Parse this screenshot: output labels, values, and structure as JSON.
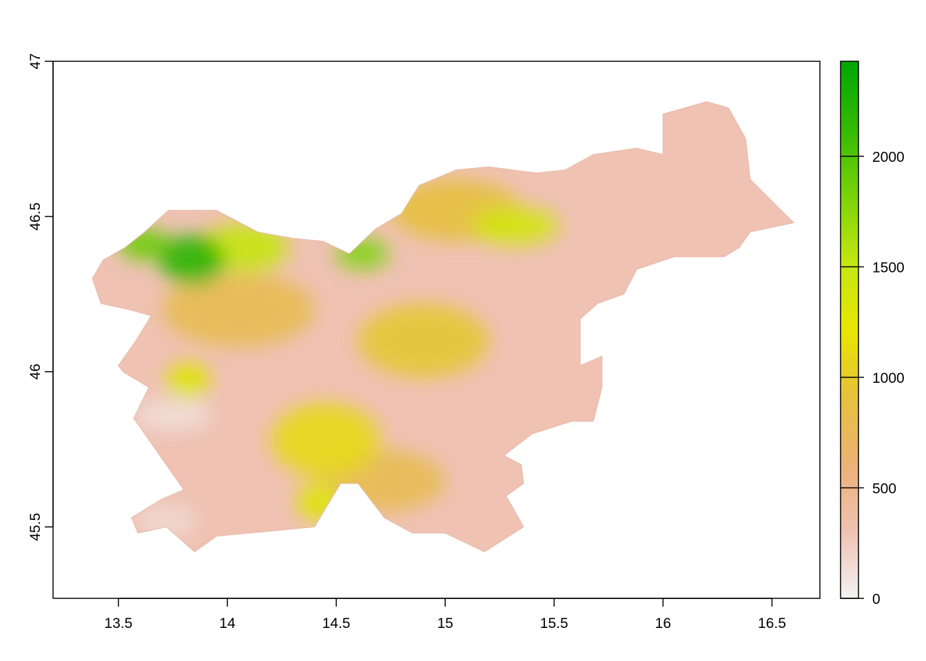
{
  "chart_data": {
    "type": "heatmap",
    "title": "",
    "xlabel": "",
    "ylabel": "",
    "xlim": [
      13.2,
      16.72
    ],
    "ylim": [
      45.27,
      47.0
    ],
    "x_ticks": [
      "13.5",
      "14",
      "14.5",
      "15",
      "15.5",
      "16",
      "16.5"
    ],
    "y_ticks": [
      "45.5",
      "46",
      "46.5",
      "47"
    ],
    "legend": {
      "placement": "right",
      "range": [
        0,
        2430
      ],
      "ticks": [
        "0",
        "500",
        "1000",
        "1500",
        "2000"
      ],
      "colors": [
        "#f2f2f2",
        "#efc2b3",
        "#ecb176",
        "#e6c13b",
        "#e8e600",
        "#c4e612",
        "#79d308",
        "#34ba03",
        "#00a600"
      ]
    },
    "region_outline_lonlat": [
      [
        13.38,
        46.3
      ],
      [
        13.43,
        46.36
      ],
      [
        13.53,
        46.4
      ],
      [
        13.62,
        46.45
      ],
      [
        13.73,
        46.52
      ],
      [
        13.95,
        46.52
      ],
      [
        14.14,
        46.45
      ],
      [
        14.3,
        46.43
      ],
      [
        14.44,
        46.42
      ],
      [
        14.56,
        46.38
      ],
      [
        14.68,
        46.46
      ],
      [
        14.8,
        46.51
      ],
      [
        14.88,
        46.6
      ],
      [
        15.05,
        46.65
      ],
      [
        15.2,
        46.66
      ],
      [
        15.42,
        46.64
      ],
      [
        15.55,
        46.65
      ],
      [
        15.68,
        46.7
      ],
      [
        15.88,
        46.72
      ],
      [
        16.0,
        46.7
      ],
      [
        16.0,
        46.83
      ],
      [
        16.2,
        46.87
      ],
      [
        16.3,
        46.85
      ],
      [
        16.38,
        46.75
      ],
      [
        16.4,
        46.62
      ],
      [
        16.6,
        46.48
      ],
      [
        16.4,
        46.45
      ],
      [
        16.35,
        46.4
      ],
      [
        16.28,
        46.37
      ],
      [
        16.05,
        46.37
      ],
      [
        15.88,
        46.33
      ],
      [
        15.82,
        46.25
      ],
      [
        15.7,
        46.22
      ],
      [
        15.62,
        46.17
      ],
      [
        15.62,
        46.02
      ],
      [
        15.72,
        46.05
      ],
      [
        15.72,
        45.95
      ],
      [
        15.68,
        45.84
      ],
      [
        15.58,
        45.84
      ],
      [
        15.4,
        45.8
      ],
      [
        15.27,
        45.73
      ],
      [
        15.35,
        45.7
      ],
      [
        15.36,
        45.64
      ],
      [
        15.28,
        45.6
      ],
      [
        15.36,
        45.5
      ],
      [
        15.18,
        45.42
      ],
      [
        15.0,
        45.48
      ],
      [
        14.85,
        45.48
      ],
      [
        14.72,
        45.53
      ],
      [
        14.6,
        45.64
      ],
      [
        14.52,
        45.64
      ],
      [
        14.4,
        45.5
      ],
      [
        14.1,
        45.48
      ],
      [
        13.95,
        45.47
      ],
      [
        13.85,
        45.42
      ],
      [
        13.72,
        45.5
      ],
      [
        13.59,
        45.48
      ],
      [
        13.56,
        45.53
      ],
      [
        13.7,
        45.59
      ],
      [
        13.8,
        45.62
      ],
      [
        13.72,
        45.7
      ],
      [
        13.6,
        45.82
      ],
      [
        13.57,
        45.85
      ],
      [
        13.64,
        45.95
      ],
      [
        13.52,
        46.0
      ],
      [
        13.5,
        46.02
      ],
      [
        13.58,
        46.1
      ],
      [
        13.65,
        46.18
      ],
      [
        13.55,
        46.2
      ],
      [
        13.42,
        46.22
      ],
      [
        13.38,
        46.3
      ]
    ],
    "elevation_zones_lonlat": [
      {
        "level": 2200,
        "center": [
          13.84,
          46.36
        ],
        "radius": [
          0.15,
          0.08
        ]
      },
      {
        "level": 1900,
        "center": [
          13.62,
          46.41
        ],
        "radius": [
          0.12,
          0.05
        ]
      },
      {
        "level": 1800,
        "center": [
          14.62,
          46.38
        ],
        "radius": [
          0.12,
          0.05
        ]
      },
      {
        "level": 1500,
        "center": [
          14.08,
          46.4
        ],
        "radius": [
          0.2,
          0.08
        ]
      },
      {
        "level": 1400,
        "center": [
          15.32,
          46.47
        ],
        "radius": [
          0.2,
          0.06
        ]
      },
      {
        "level": 1300,
        "center": [
          13.82,
          45.97
        ],
        "radius": [
          0.1,
          0.06
        ]
      },
      {
        "level": 1300,
        "center": [
          14.42,
          45.58
        ],
        "radius": [
          0.1,
          0.06
        ]
      },
      {
        "level": 1100,
        "center": [
          14.45,
          45.78
        ],
        "radius": [
          0.25,
          0.12
        ]
      },
      {
        "level": 950,
        "center": [
          14.9,
          46.1
        ],
        "radius": [
          0.3,
          0.12
        ]
      },
      {
        "level": 900,
        "center": [
          15.05,
          46.52
        ],
        "radius": [
          0.3,
          0.1
        ]
      },
      {
        "level": 800,
        "center": [
          14.05,
          46.2
        ],
        "radius": [
          0.35,
          0.12
        ]
      },
      {
        "level": 800,
        "center": [
          14.7,
          45.65
        ],
        "radius": [
          0.3,
          0.1
        ]
      },
      {
        "level": 150,
        "center": [
          13.72,
          45.52
        ],
        "radius": [
          0.14,
          0.05
        ]
      },
      {
        "level": 120,
        "center": [
          13.75,
          45.86
        ],
        "radius": [
          0.18,
          0.05
        ]
      }
    ]
  }
}
